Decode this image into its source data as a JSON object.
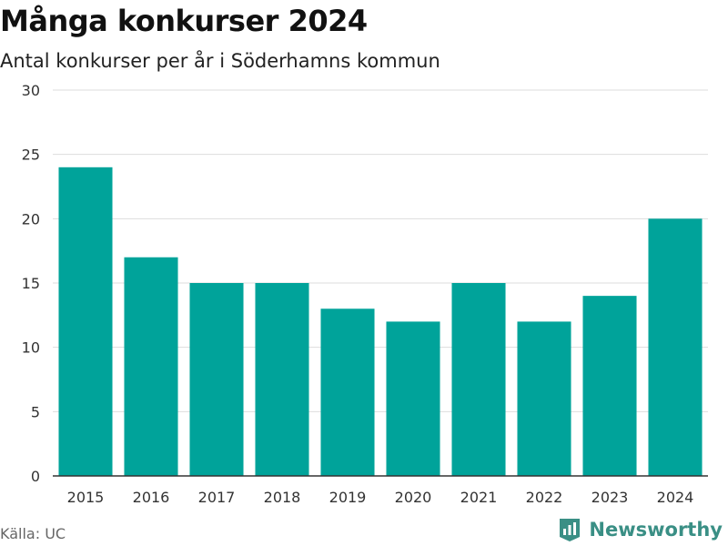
{
  "header": {
    "title": "Många konkurser 2024",
    "subtitle": "Antal konkurser per år i Söderhamns kommun"
  },
  "footer": {
    "source": "Källa: UC",
    "brand": "Newsworthy",
    "brand_icon": "newsworthy-logo-icon",
    "brand_color": "#3a8f85"
  },
  "chart_data": {
    "type": "bar",
    "title": "Många konkurser 2024",
    "subtitle": "Antal konkurser per år i Söderhamns kommun",
    "xlabel": "",
    "ylabel": "",
    "categories": [
      "2015",
      "2016",
      "2017",
      "2018",
      "2019",
      "2020",
      "2021",
      "2022",
      "2023",
      "2024"
    ],
    "values": [
      24,
      17,
      15,
      15,
      13,
      12,
      15,
      12,
      14,
      20
    ],
    "ylim": [
      0,
      30
    ],
    "yticks": [
      0,
      5,
      10,
      15,
      20,
      25,
      30
    ],
    "bar_color": "#00a39a",
    "grid": true,
    "legend": "none"
  }
}
